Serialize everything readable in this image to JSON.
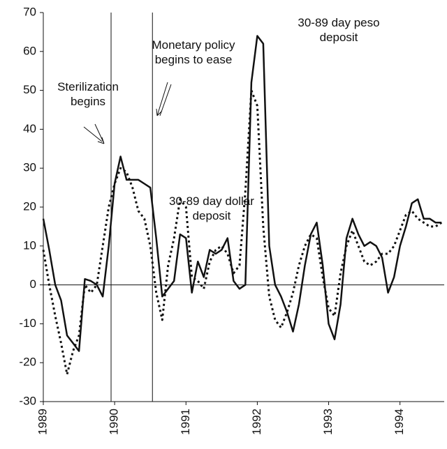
{
  "chart_data": {
    "type": "line",
    "x": [
      1989,
      1989.083,
      1989.167,
      1989.25,
      1989.333,
      1989.417,
      1989.5,
      1989.583,
      1989.667,
      1989.75,
      1989.833,
      1989.917,
      1990,
      1990.083,
      1990.167,
      1990.25,
      1990.333,
      1990.417,
      1990.5,
      1990.583,
      1990.667,
      1990.75,
      1990.833,
      1990.917,
      1991,
      1991.083,
      1991.167,
      1991.25,
      1991.333,
      1991.417,
      1991.5,
      1991.583,
      1991.667,
      1991.75,
      1991.833,
      1991.917,
      1992,
      1992.083,
      1992.167,
      1992.25,
      1992.333,
      1992.417,
      1992.5,
      1992.583,
      1992.667,
      1992.75,
      1992.833,
      1992.917,
      1993,
      1993.083,
      1993.167,
      1993.25,
      1993.333,
      1993.417,
      1993.5,
      1993.583,
      1993.667,
      1993.75,
      1993.833,
      1993.917,
      1994,
      1994.083,
      1994.167,
      1994.25,
      1994.333,
      1994.417,
      1994.5,
      1994.583
    ],
    "series": [
      {
        "name": "30-89 day peso deposit",
        "color": "#111111",
        "style": "solid",
        "values": [
          17,
          9,
          0,
          -4,
          -13,
          -15,
          -17,
          1.5,
          1,
          0,
          -3,
          10,
          26,
          33,
          27,
          27,
          27,
          26,
          25,
          12,
          -3,
          -1,
          1,
          13,
          12,
          -2,
          6,
          2,
          9,
          8,
          9,
          12,
          1,
          -1,
          0,
          52,
          64,
          62,
          10,
          0,
          -3,
          -7,
          -12,
          -5,
          5,
          13,
          16,
          5,
          -10,
          -14,
          -5,
          12,
          17,
          13,
          10,
          11,
          10,
          7,
          -2,
          2,
          10,
          15,
          21,
          22,
          17,
          17,
          16,
          16
        ]
      },
      {
        "name": "30-89 day dollar deposit",
        "color": "#111111",
        "style": "dotted",
        "values": [
          9,
          0,
          -8,
          -15,
          -23,
          -17,
          -13,
          0,
          -2,
          0,
          10,
          20,
          26,
          30,
          29,
          25,
          19,
          17,
          10,
          -2,
          -9,
          5,
          12,
          22,
          20,
          2,
          1,
          -1,
          6,
          9,
          10,
          8,
          3,
          5,
          24,
          50,
          46,
          15,
          -3,
          -9,
          -11,
          -7,
          -2,
          5,
          10,
          13,
          12,
          2,
          -6,
          -8,
          3,
          10,
          14,
          10,
          6,
          5,
          6,
          8,
          8,
          10,
          14,
          18,
          19,
          17,
          16,
          15,
          15,
          16
        ]
      }
    ],
    "annotations": [
      {
        "text": "Sterilization begins",
        "x": 1989.95
      },
      {
        "text": "Monetary policy begins to ease",
        "x": 1990.53
      }
    ],
    "xlim": [
      1989,
      1994.62
    ],
    "xticks": [
      1989,
      1990,
      1991,
      1992,
      1993,
      1994
    ],
    "ylim": [
      -30,
      70
    ],
    "yticks": [
      -30,
      -20,
      -10,
      0,
      10,
      20,
      30,
      40,
      50,
      60,
      70
    ]
  }
}
